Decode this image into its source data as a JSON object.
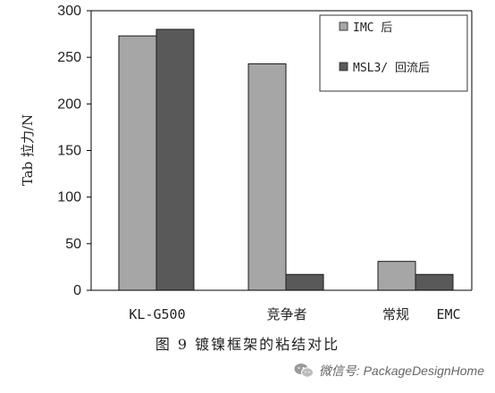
{
  "chart_data": {
    "type": "bar",
    "categories": [
      "KL-G500",
      "竞争者",
      "常规",
      "EMC"
    ],
    "series": [
      {
        "name": "IMC 后",
        "values": [
          273,
          243,
          31,
          null
        ],
        "color": "#a6a6a6"
      },
      {
        "name": "MSL3/ 回流后",
        "values": [
          280,
          17,
          null,
          17
        ],
        "color": "#595959"
      }
    ],
    "ylabel": "Tab 拉力/N",
    "ylim": [
      0,
      300
    ],
    "yticks": [
      0,
      50,
      100,
      150,
      200,
      250,
      300
    ],
    "grid": false,
    "legend_position": "top-right"
  },
  "caption": "图 9  镀镍框架的粘结对比",
  "watermark": {
    "text": "微信号: PackageDesignHome",
    "icon": "wechat-icon"
  }
}
